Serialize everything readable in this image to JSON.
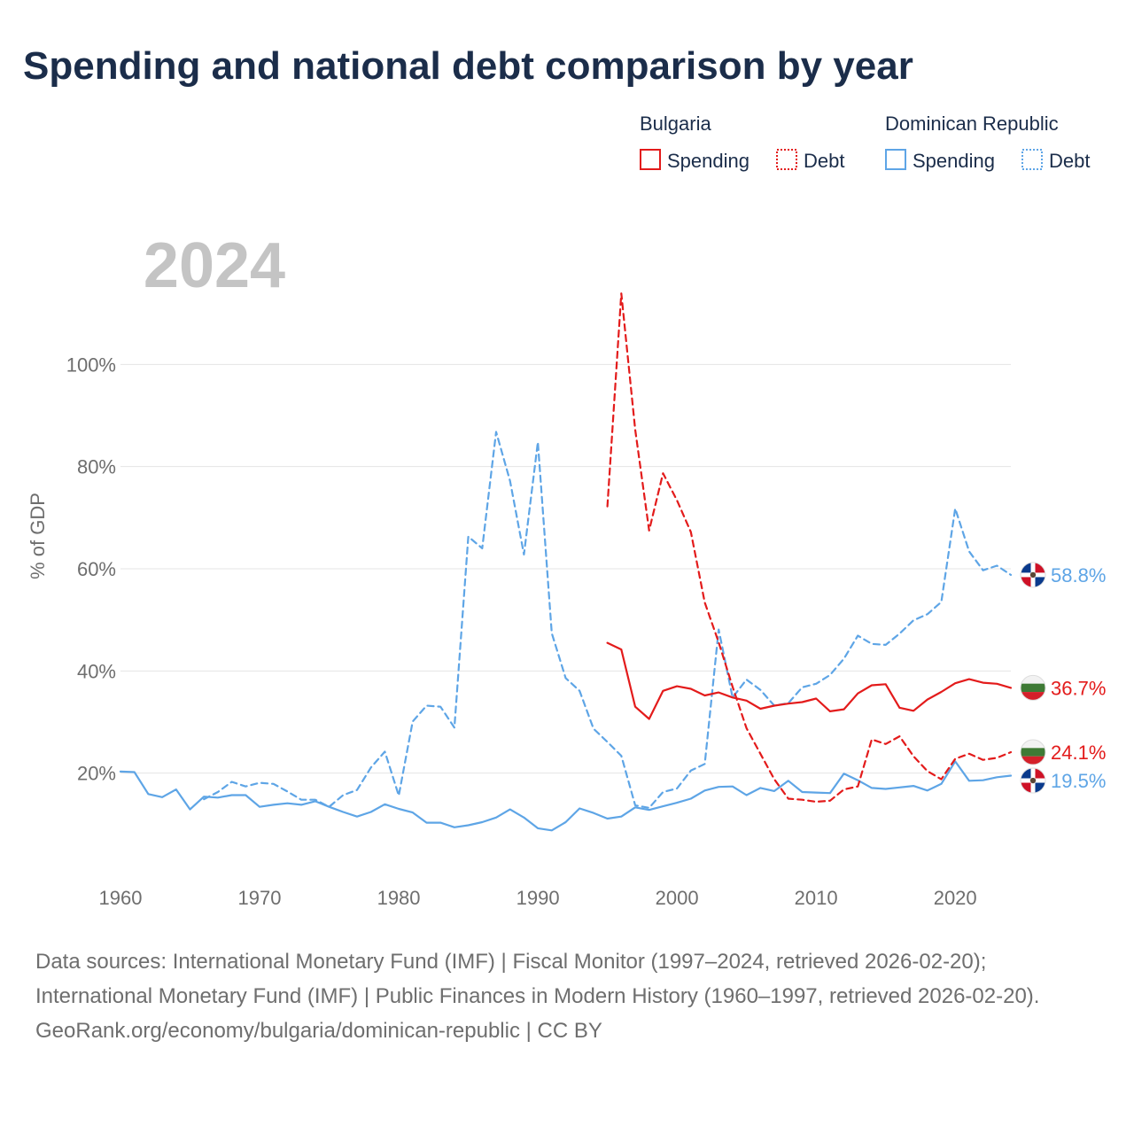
{
  "title": "Spending and national debt comparison by year",
  "year_label": "2024",
  "colors": {
    "title": "#1b2d4a",
    "bulgaria": "#e31b1b",
    "dominican": "#5ea5e6",
    "grid": "#e5e5e5",
    "axis_text": "#6e6e6e",
    "year_text": "#c4c4c4",
    "legend_text": "#1b2d4a"
  },
  "legend": {
    "groups": [
      {
        "name": "Bulgaria",
        "color_key": "bulgaria",
        "items": [
          "Spending",
          "Debt"
        ]
      },
      {
        "name": "Dominican Republic",
        "color_key": "dominican",
        "items": [
          "Spending",
          "Debt"
        ]
      }
    ]
  },
  "chart_data": {
    "type": "line",
    "title": "Spending and national debt comparison by year",
    "xlabel": "",
    "ylabel": "% of GDP",
    "xlim": [
      1960,
      2024
    ],
    "ylim": [
      0,
      120
    ],
    "x_ticks": [
      1960,
      1970,
      1980,
      1990,
      2000,
      2010,
      2020
    ],
    "y_ticks": [
      {
        "value": 20,
        "label": "20%"
      },
      {
        "value": 40,
        "label": "40%"
      },
      {
        "value": 60,
        "label": "60%"
      },
      {
        "value": 80,
        "label": "80%"
      },
      {
        "value": 100,
        "label": "100%"
      }
    ],
    "grid": true,
    "series": [
      {
        "name": "Dominican Republic Debt",
        "country": "Dominican Republic",
        "measure": "Debt",
        "color_key": "dominican",
        "dashed": true,
        "end_label": "58.8%",
        "x": [
          1966,
          1967,
          1968,
          1969,
          1970,
          1971,
          1972,
          1973,
          1974,
          1975,
          1976,
          1977,
          1978,
          1979,
          1980,
          1981,
          1982,
          1983,
          1984,
          1985,
          1986,
          1987,
          1988,
          1989,
          1990,
          1991,
          1992,
          1993,
          1994,
          1995,
          1996,
          1997,
          1998,
          1999,
          2000,
          2001,
          2002,
          2003,
          2004,
          2005,
          2006,
          2007,
          2008,
          2009,
          2010,
          2011,
          2012,
          2013,
          2014,
          2015,
          2016,
          2017,
          2018,
          2019,
          2020,
          2021,
          2022,
          2023,
          2024
        ],
        "values": [
          14.9,
          16.3,
          18.3,
          17.4,
          18.1,
          17.9,
          16.4,
          14.8,
          14.8,
          13.4,
          15.7,
          16.7,
          21.1,
          24.2,
          15.6,
          30.1,
          33.2,
          33.0,
          28.9,
          66.3,
          64.0,
          86.8,
          77.2,
          62.8,
          84.8,
          47.4,
          38.6,
          36.1,
          28.7,
          26.1,
          23.4,
          13.7,
          13.2,
          16.3,
          17.0,
          20.5,
          21.8,
          48.1,
          34.8,
          38.3,
          36.3,
          33.2,
          33.7,
          36.8,
          37.5,
          39.2,
          42.4,
          46.9,
          45.3,
          45.1,
          47.3,
          49.9,
          51.1,
          53.5,
          71.8,
          63.4,
          59.7,
          60.6,
          58.8
        ]
      },
      {
        "name": "Dominican Republic Spending",
        "country": "Dominican Republic",
        "measure": "Spending",
        "color_key": "dominican",
        "dashed": false,
        "end_label": "19.5%",
        "x": [
          1960,
          1961,
          1962,
          1963,
          1964,
          1965,
          1966,
          1967,
          1968,
          1969,
          1970,
          1971,
          1972,
          1973,
          1974,
          1975,
          1976,
          1977,
          1978,
          1979,
          1980,
          1981,
          1982,
          1983,
          1984,
          1985,
          1986,
          1987,
          1988,
          1989,
          1990,
          1991,
          1992,
          1993,
          1994,
          1995,
          1996,
          1997,
          1998,
          1999,
          2000,
          2001,
          2002,
          2003,
          2004,
          2005,
          2006,
          2007,
          2008,
          2009,
          2010,
          2011,
          2012,
          2013,
          2014,
          2015,
          2016,
          2017,
          2018,
          2019,
          2020,
          2021,
          2022,
          2023,
          2024
        ],
        "values": [
          20.3,
          20.2,
          15.9,
          15.3,
          16.8,
          12.9,
          15.4,
          15.2,
          15.7,
          15.7,
          13.4,
          13.8,
          14.1,
          13.8,
          14.5,
          13.4,
          12.4,
          11.5,
          12.4,
          13.9,
          13.0,
          12.3,
          10.3,
          10.3,
          9.4,
          9.8,
          10.4,
          11.3,
          12.9,
          11.3,
          9.2,
          8.8,
          10.4,
          13.1,
          12.2,
          11.1,
          11.5,
          13.3,
          12.8,
          13.5,
          14.2,
          15.0,
          16.6,
          17.3,
          17.4,
          15.7,
          17.1,
          16.5,
          18.5,
          16.3,
          16.2,
          16.1,
          19.9,
          18.6,
          17.1,
          16.9,
          17.2,
          17.5,
          16.6,
          17.9,
          22.3,
          18.5,
          18.6,
          19.2,
          19.5
        ]
      },
      {
        "name": "Bulgaria Debt",
        "country": "Bulgaria",
        "measure": "Debt",
        "color_key": "bulgaria",
        "dashed": true,
        "end_label": "24.1%",
        "x": [
          1995,
          1996,
          1997,
          1998,
          1999,
          2000,
          2001,
          2002,
          2003,
          2004,
          2005,
          2006,
          2007,
          2008,
          2009,
          2010,
          2011,
          2012,
          2013,
          2014,
          2015,
          2016,
          2017,
          2018,
          2019,
          2020,
          2021,
          2022,
          2023,
          2024
        ],
        "values": [
          72.2,
          113.9,
          87.2,
          67.5,
          78.7,
          73.4,
          67.2,
          53.4,
          45.6,
          36.9,
          28.8,
          23.8,
          18.8,
          15.0,
          14.8,
          14.4,
          14.6,
          16.8,
          17.4,
          26.6,
          25.7,
          27.2,
          23.3,
          20.4,
          18.8,
          22.8,
          23.8,
          22.6,
          23.0,
          24.1
        ]
      },
      {
        "name": "Bulgaria Spending",
        "country": "Bulgaria",
        "measure": "Spending",
        "color_key": "bulgaria",
        "dashed": false,
        "end_label": "36.7%",
        "x": [
          1995,
          1996,
          1997,
          1998,
          1999,
          2000,
          2001,
          2002,
          2003,
          2004,
          2005,
          2006,
          2007,
          2008,
          2009,
          2010,
          2011,
          2012,
          2013,
          2014,
          2015,
          2016,
          2017,
          2018,
          2019,
          2020,
          2021,
          2022,
          2023,
          2024
        ],
        "values": [
          45.5,
          44.2,
          33.0,
          30.6,
          36.1,
          37.0,
          36.5,
          35.2,
          35.8,
          34.8,
          34.2,
          32.6,
          33.2,
          33.6,
          33.9,
          34.6,
          32.1,
          32.5,
          35.6,
          37.2,
          37.4,
          32.8,
          32.2,
          34.4,
          35.9,
          37.6,
          38.4,
          37.7,
          37.5,
          36.7
        ]
      }
    ]
  },
  "footer": {
    "sources": "Data sources: International Monetary Fund (IMF) | Fiscal Monitor (1997–2024, retrieved 2026-02-20); International Monetary Fund (IMF) | Public Finances in Modern History (1960–1997, retrieved 2026-02-20).",
    "credit": "GeoRank.org/economy/bulgaria/dominican-republic | CC BY"
  }
}
